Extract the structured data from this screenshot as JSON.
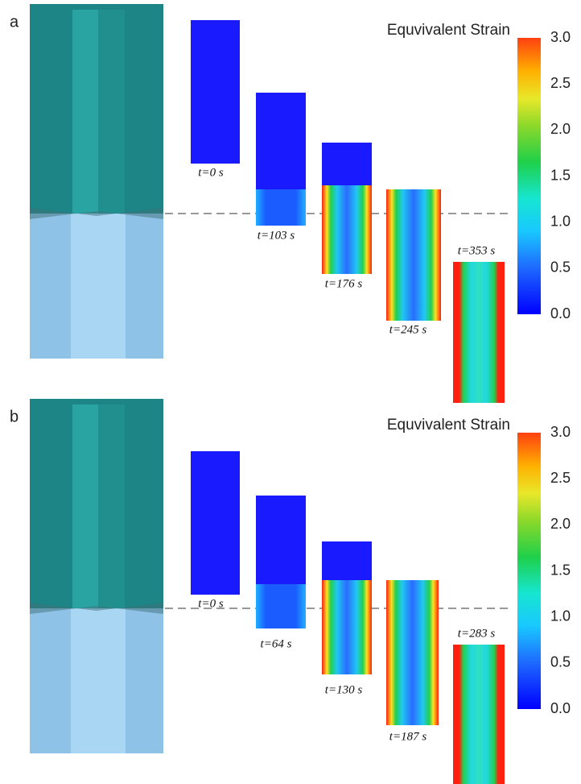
{
  "panels": [
    {
      "label": "a",
      "colorbar": {
        "title": "Equvivalent Strain",
        "ticks": [
          "3.0",
          "2.5",
          "2.0",
          "1.5",
          "1.0",
          "0.5",
          "0.0"
        ]
      },
      "snapshots": [
        {
          "time": "t=0 s"
        },
        {
          "time": "t=103 s"
        },
        {
          "time": "t=176 s"
        },
        {
          "time": "t=245 s"
        },
        {
          "time": "t=353 s"
        }
      ]
    },
    {
      "label": "b",
      "colorbar": {
        "title": "Equvivalent Strain",
        "ticks": [
          "3.0",
          "2.5",
          "2.0",
          "1.5",
          "1.0",
          "0.5",
          "0.0"
        ]
      },
      "snapshots": [
        {
          "time": "t=0 s"
        },
        {
          "time": "t=64 s"
        },
        {
          "time": "t=130 s"
        },
        {
          "time": "t=187 s"
        },
        {
          "time": "t=283 s"
        }
      ]
    }
  ]
}
